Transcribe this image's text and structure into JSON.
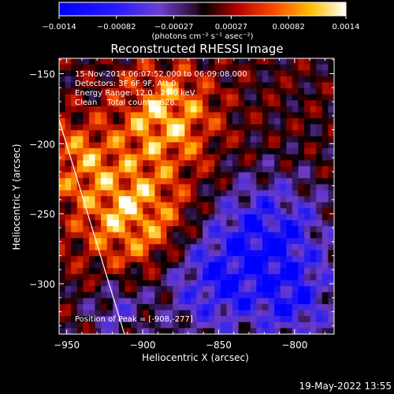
{
  "colorbar": {
    "tick_labels": [
      "-0.0014",
      "-0.00082",
      "-0.00027",
      "0.00027",
      "0.00082",
      "0.0014"
    ],
    "units_label": "(photons cm⁻² s⁻¹ asec⁻²)",
    "range": [
      -0.0014,
      0.0014
    ]
  },
  "chart_data": {
    "type": "heatmap",
    "title": "Reconstructed RHESSI Image",
    "xlabel": "Heliocentric X (arcsec)",
    "ylabel": "Heliocentric Y (arcsec)",
    "xlim": [
      -955,
      -774
    ],
    "ylim": [
      -336,
      -139
    ],
    "x_ticks": [
      -950,
      -900,
      -850,
      -800
    ],
    "y_ticks": [
      -150,
      -200,
      -250,
      -300
    ],
    "x_tick_labels": [
      "−950",
      "−900",
      "−850",
      "−800"
    ],
    "y_tick_labels": [
      "−150",
      "−200",
      "−250",
      "−300"
    ],
    "annotations": {
      "time_range": "15-Nov-2014 06:07:52.000 to 06:09:08.000",
      "detectors": "Detectors: 3F 6F 9F, Att 0",
      "energy_range": "Energy Range: 12.0 - 25.0 keV",
      "clean": "Clean    Total counts: 628.",
      "peak": "Position of Peak = [-908,-277]"
    },
    "peak_position": [
      -908,
      -277
    ],
    "limb_line": [
      [
        -955,
        -183
      ],
      [
        -912,
        -336
      ]
    ]
  },
  "footer": {
    "timestamp": "19-May-2022 13:55"
  }
}
